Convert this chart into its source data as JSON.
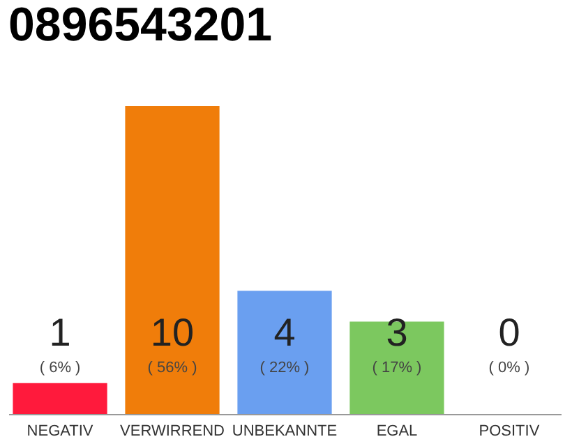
{
  "chart_data": {
    "type": "bar",
    "title": "0896543201",
    "categories": [
      "NEGATIV",
      "VERWIRREND",
      "UNBEKANNTE",
      "EGAL",
      "POSITIV"
    ],
    "values": [
      1,
      10,
      4,
      3,
      0
    ],
    "colors": [
      "#ff1a3c",
      "#f07d0a",
      "#6a9ff0",
      "#7cc85f",
      "#d0d0d0"
    ],
    "data_labels": true,
    "annotations": [
      "( 6% )",
      "( 56% )",
      "( 22% )",
      "( 17% )",
      "( 0% )"
    ],
    "grid": false
  }
}
